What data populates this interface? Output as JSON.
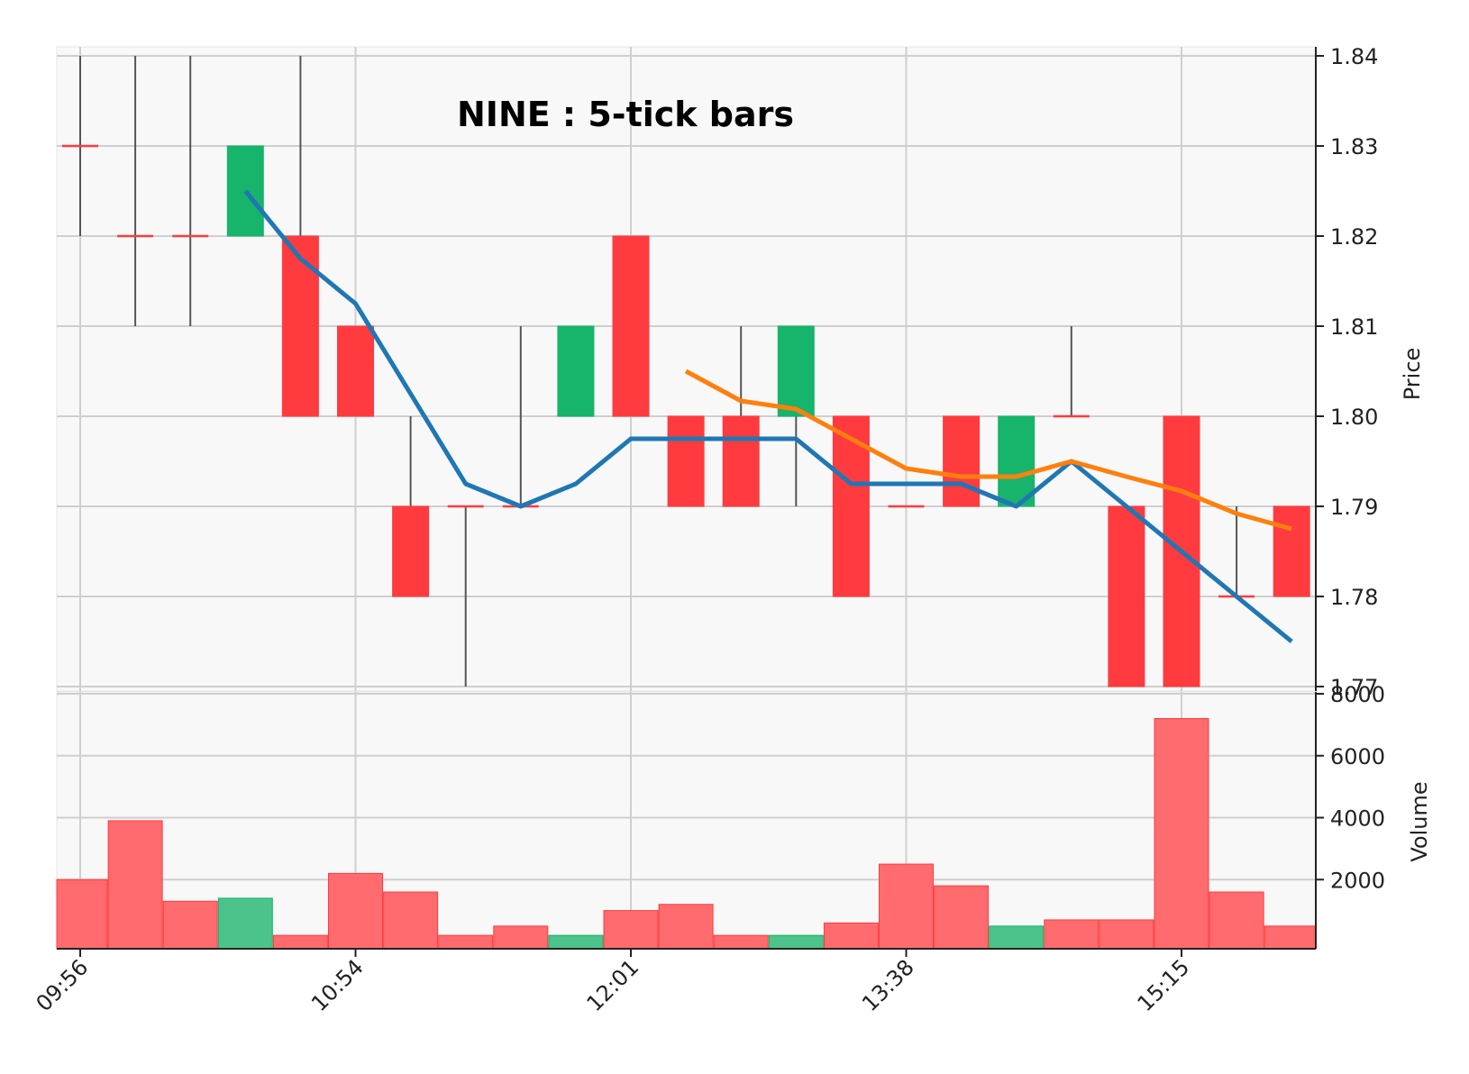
{
  "chart_data": {
    "type": "candlestick",
    "title": "NINE : 5-tick bars",
    "price_axis": {
      "label": "Price",
      "ylim": [
        1.77,
        1.84
      ],
      "ticks": [
        "1.77",
        "1.78",
        "1.79",
        "1.80",
        "1.81",
        "1.82",
        "1.83",
        "1.84"
      ],
      "tick_values": [
        1.77,
        1.78,
        1.79,
        1.8,
        1.81,
        1.82,
        1.83,
        1.84
      ]
    },
    "volume_axis": {
      "label": "Volume",
      "ylim": [
        0,
        8000
      ],
      "ticks": [
        "2000",
        "4000",
        "6000",
        "8000"
      ],
      "tick_values": [
        2000,
        4000,
        6000,
        8000
      ]
    },
    "x_ticks": [
      {
        "index": 0,
        "label": "09:56"
      },
      {
        "index": 5,
        "label": "10:54"
      },
      {
        "index": 10,
        "label": "12:01"
      },
      {
        "index": 15,
        "label": "13:38"
      },
      {
        "index": 20,
        "label": "15:15"
      }
    ],
    "grid": true,
    "colors": {
      "up": "#17b46b",
      "down": "#ff3b3f",
      "up_volume": "#4cc38a",
      "down_volume": "#ff6b6e",
      "ma1": "#1f77b4",
      "ma2": "#ff7f0e",
      "wick": "#555555",
      "panel_bg": "#f8f8f8",
      "grid": "#cfcfcf"
    },
    "candles": [
      {
        "open": 1.83,
        "high": 1.84,
        "low": 1.82,
        "close": 1.83,
        "volume": 2000
      },
      {
        "open": 1.82,
        "high": 1.84,
        "low": 1.81,
        "close": 1.82,
        "volume": 3900
      },
      {
        "open": 1.82,
        "high": 1.84,
        "low": 1.81,
        "close": 1.82,
        "volume": 1300
      },
      {
        "open": 1.82,
        "high": 1.83,
        "low": 1.82,
        "close": 1.83,
        "volume": 1400
      },
      {
        "open": 1.82,
        "high": 1.84,
        "low": 1.8,
        "close": 1.8,
        "volume": 200
      },
      {
        "open": 1.81,
        "high": 1.81,
        "low": 1.8,
        "close": 1.8,
        "volume": 2200
      },
      {
        "open": 1.79,
        "high": 1.8,
        "low": 1.78,
        "close": 1.78,
        "volume": 1600
      },
      {
        "open": 1.79,
        "high": 1.79,
        "low": 1.77,
        "close": 1.79,
        "volume": 200
      },
      {
        "open": 1.79,
        "high": 1.81,
        "low": 1.79,
        "close": 1.79,
        "volume": 500
      },
      {
        "open": 1.8,
        "high": 1.81,
        "low": 1.8,
        "close": 1.81,
        "volume": 200
      },
      {
        "open": 1.82,
        "high": 1.82,
        "low": 1.8,
        "close": 1.8,
        "volume": 1000
      },
      {
        "open": 1.8,
        "high": 1.8,
        "low": 1.79,
        "close": 1.79,
        "volume": 1200
      },
      {
        "open": 1.8,
        "high": 1.81,
        "low": 1.79,
        "close": 1.79,
        "volume": 200
      },
      {
        "open": 1.8,
        "high": 1.81,
        "low": 1.79,
        "close": 1.81,
        "volume": 200
      },
      {
        "open": 1.8,
        "high": 1.8,
        "low": 1.78,
        "close": 1.78,
        "volume": 600
      },
      {
        "open": 1.79,
        "high": 1.79,
        "low": 1.79,
        "close": 1.79,
        "volume": 2500
      },
      {
        "open": 1.8,
        "high": 1.8,
        "low": 1.79,
        "close": 1.79,
        "volume": 1800
      },
      {
        "open": 1.79,
        "high": 1.8,
        "low": 1.79,
        "close": 1.8,
        "volume": 500
      },
      {
        "open": 1.8,
        "high": 1.81,
        "low": 1.8,
        "close": 1.8,
        "volume": 700
      },
      {
        "open": 1.79,
        "high": 1.79,
        "low": 1.77,
        "close": 1.77,
        "volume": 700
      },
      {
        "open": 1.8,
        "high": 1.8,
        "low": 1.77,
        "close": 1.77,
        "volume": 7200
      },
      {
        "open": 1.78,
        "high": 1.79,
        "low": 1.78,
        "close": 1.78,
        "volume": 1600
      },
      {
        "open": 1.79,
        "high": 1.79,
        "low": 1.78,
        "close": 1.78,
        "volume": 500
      }
    ],
    "moving_averages": [
      {
        "color": "#1f77b4",
        "start_index": 3,
        "values": [
          1.825,
          1.8175,
          1.8125,
          1.8025,
          1.7925,
          1.79,
          1.7925,
          1.7975,
          1.7975,
          1.7975,
          1.7975,
          1.7925,
          1.7925,
          1.7925,
          1.79,
          1.795,
          1.79,
          1.785,
          1.78,
          1.775
        ]
      },
      {
        "color": "#ff7f0e",
        "start_index": 11,
        "values": [
          1.805,
          1.8017,
          1.8008,
          1.7975,
          1.7942,
          1.7933,
          1.7933,
          1.795,
          1.7933,
          1.7917,
          1.7892,
          1.7875
        ]
      }
    ]
  }
}
